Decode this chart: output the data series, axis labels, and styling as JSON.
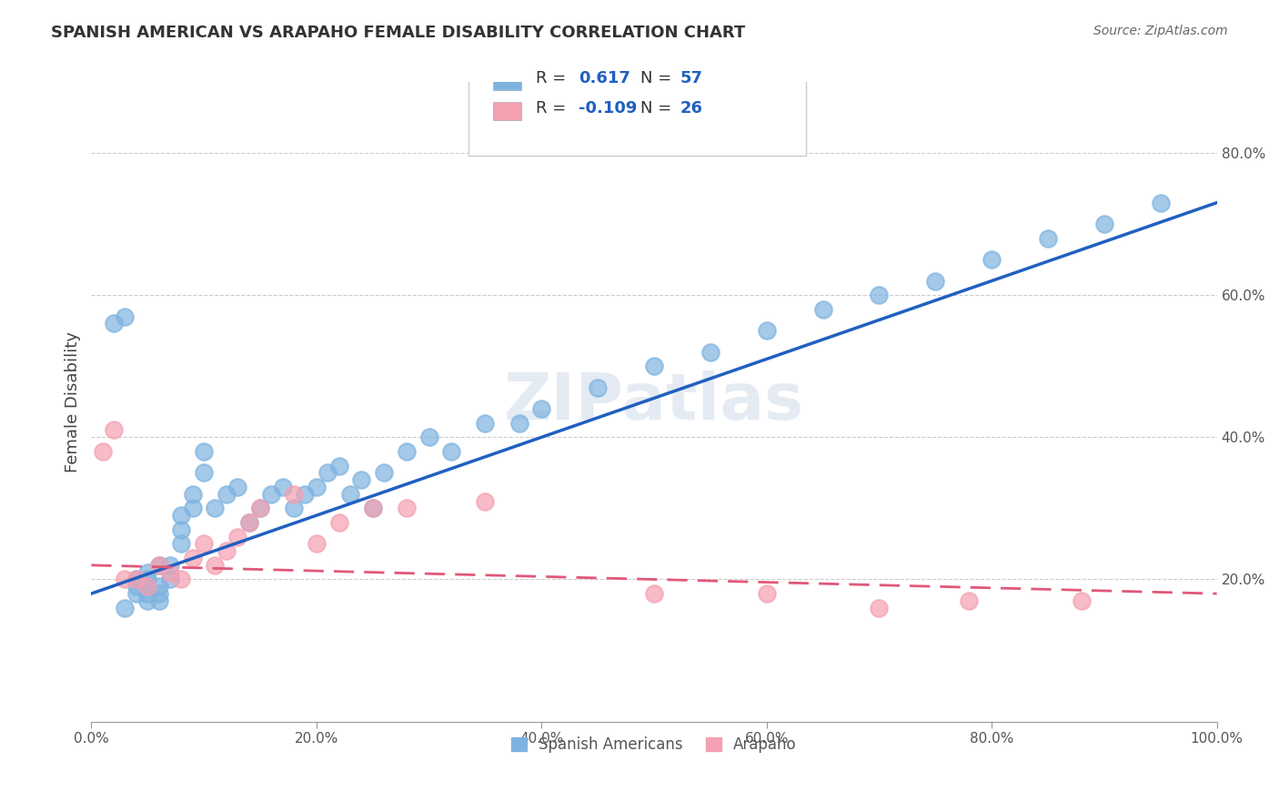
{
  "title": "SPANISH AMERICAN VS ARAPAHO FEMALE DISABILITY CORRELATION CHART",
  "source_text": "Source: ZipAtlas.com",
  "xlabel": "",
  "ylabel": "Female Disability",
  "xlim": [
    0,
    1.0
  ],
  "ylim": [
    0,
    0.9
  ],
  "x_tick_labels": [
    "0.0%",
    "20.0%",
    "40.0%",
    "60.0%",
    "80.0%",
    "100.0%"
  ],
  "x_tick_vals": [
    0,
    0.2,
    0.4,
    0.6,
    0.8,
    1.0
  ],
  "y_tick_labels": [
    "20.0%",
    "40.0%",
    "60.0%",
    "80.0%"
  ],
  "y_tick_vals": [
    0.2,
    0.4,
    0.6,
    0.8
  ],
  "legend_r1": "R =  0.617   N = 57",
  "legend_r2": "R = -0.109   N = 26",
  "blue_color": "#7eb3e0",
  "pink_color": "#f4a0b0",
  "blue_line_color": "#2060c0",
  "pink_line_color": "#e05878",
  "watermark": "ZIPatlas",
  "blue_scatter_x": [
    0.02,
    0.03,
    0.03,
    0.04,
    0.04,
    0.04,
    0.05,
    0.05,
    0.05,
    0.05,
    0.05,
    0.06,
    0.06,
    0.06,
    0.06,
    0.07,
    0.07,
    0.08,
    0.08,
    0.08,
    0.09,
    0.09,
    0.1,
    0.1,
    0.11,
    0.12,
    0.13,
    0.14,
    0.15,
    0.16,
    0.17,
    0.18,
    0.19,
    0.2,
    0.21,
    0.22,
    0.23,
    0.24,
    0.25,
    0.26,
    0.28,
    0.3,
    0.32,
    0.35,
    0.38,
    0.4,
    0.45,
    0.5,
    0.55,
    0.6,
    0.65,
    0.7,
    0.75,
    0.8,
    0.85,
    0.9,
    0.95
  ],
  "blue_scatter_y": [
    0.56,
    0.57,
    0.16,
    0.18,
    0.19,
    0.2,
    0.17,
    0.18,
    0.19,
    0.2,
    0.21,
    0.17,
    0.18,
    0.19,
    0.22,
    0.2,
    0.22,
    0.25,
    0.27,
    0.29,
    0.3,
    0.32,
    0.35,
    0.38,
    0.3,
    0.32,
    0.33,
    0.28,
    0.3,
    0.32,
    0.33,
    0.3,
    0.32,
    0.33,
    0.35,
    0.36,
    0.32,
    0.34,
    0.3,
    0.35,
    0.38,
    0.4,
    0.38,
    0.42,
    0.42,
    0.44,
    0.47,
    0.5,
    0.52,
    0.55,
    0.58,
    0.6,
    0.62,
    0.65,
    0.68,
    0.7,
    0.73
  ],
  "pink_scatter_x": [
    0.01,
    0.02,
    0.03,
    0.04,
    0.05,
    0.06,
    0.07,
    0.08,
    0.09,
    0.1,
    0.11,
    0.12,
    0.13,
    0.14,
    0.15,
    0.18,
    0.2,
    0.22,
    0.25,
    0.28,
    0.35,
    0.5,
    0.6,
    0.7,
    0.78,
    0.88
  ],
  "pink_scatter_y": [
    0.38,
    0.41,
    0.2,
    0.2,
    0.19,
    0.22,
    0.21,
    0.2,
    0.23,
    0.25,
    0.22,
    0.24,
    0.26,
    0.28,
    0.3,
    0.32,
    0.25,
    0.28,
    0.3,
    0.3,
    0.31,
    0.18,
    0.18,
    0.16,
    0.17,
    0.17
  ],
  "blue_line_x": [
    0,
    1.0
  ],
  "blue_line_y_start": 0.18,
  "blue_line_y_end": 0.73,
  "pink_line_x": [
    0,
    1.0
  ],
  "pink_line_y_start": 0.22,
  "pink_line_y_end": 0.18
}
